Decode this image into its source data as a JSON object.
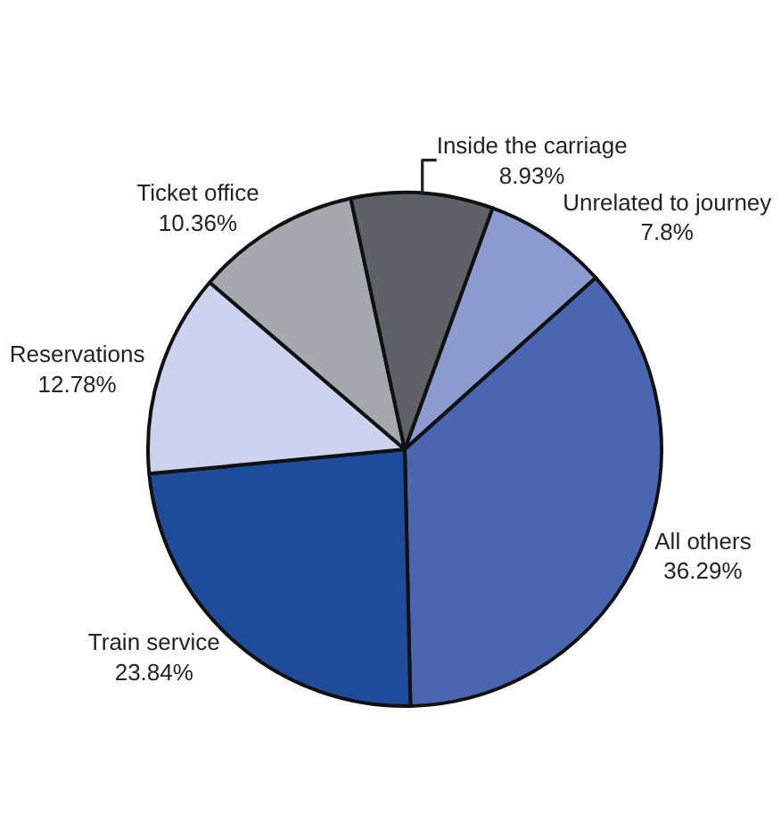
{
  "chart_data": {
    "type": "pie",
    "categories": [
      "Unrelated to journey",
      "All others",
      "Train service",
      "Reservations",
      "Ticket office",
      "Inside the carriage"
    ],
    "values": [
      7.8,
      36.29,
      23.84,
      12.78,
      10.36,
      8.93
    ],
    "value_labels": [
      "7.8%",
      "36.29%",
      "23.84%",
      "12.78%",
      "10.36%",
      "8.93%"
    ],
    "colors": [
      "#8b9bd0",
      "#4a66b0",
      "#1f4c9a",
      "#cdd3ee",
      "#a5a8ad",
      "#5f6166"
    ],
    "legend": false
  }
}
